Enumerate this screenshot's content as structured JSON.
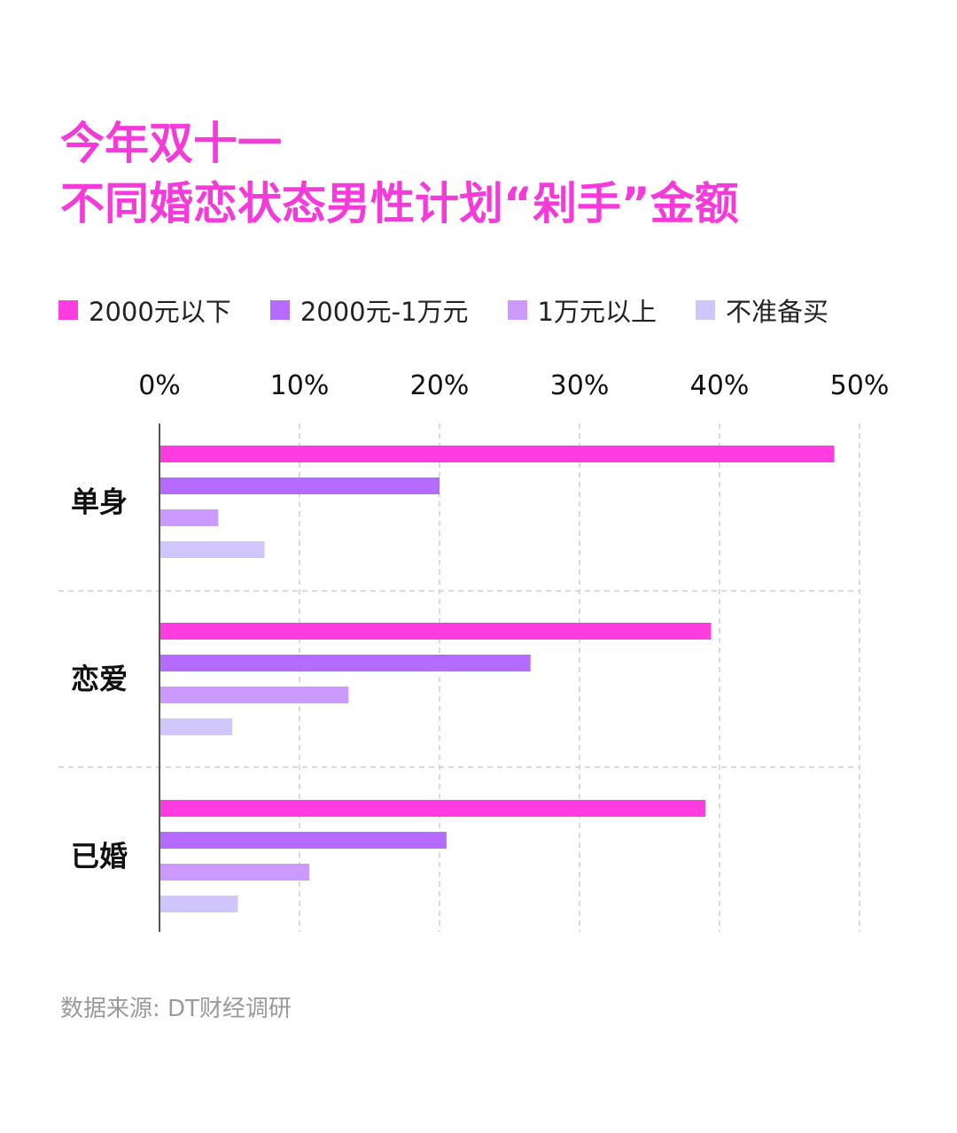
{
  "title_lines": [
    "今年双十一",
    "不同婚恋状态男性计划“剁手”金额"
  ],
  "source": "数据来源: DT财经调研",
  "colors": {
    "title": "#f43ad9",
    "grid": "#cfcfcf",
    "axis": "#555555",
    "tick_text": "#111111",
    "category_text": "#111111"
  },
  "chart_data": {
    "type": "bar",
    "orientation": "horizontal",
    "title": "今年双十一 不同婚恋状态男性计划“剁手”金额",
    "categories": [
      "单身",
      "恋爱",
      "已婚"
    ],
    "x_ticks": [
      "0%",
      "10%",
      "20%",
      "30%",
      "40%",
      "50%"
    ],
    "xlim": [
      0,
      50
    ],
    "grid": true,
    "legend_position": "top",
    "series": [
      {
        "name": "2000元以下",
        "color": "#ff3ce0",
        "values": [
          48.2,
          39.4,
          39.0
        ]
      },
      {
        "name": "2000元-1万元",
        "color": "#b56bff",
        "values": [
          20.0,
          26.5,
          20.5
        ]
      },
      {
        "name": "1万元以上",
        "color": "#cc99ff",
        "values": [
          4.2,
          13.5,
          10.7
        ]
      },
      {
        "name": "不准备买",
        "color": "#d1c6fb",
        "values": [
          7.5,
          5.2,
          5.6
        ]
      }
    ]
  }
}
